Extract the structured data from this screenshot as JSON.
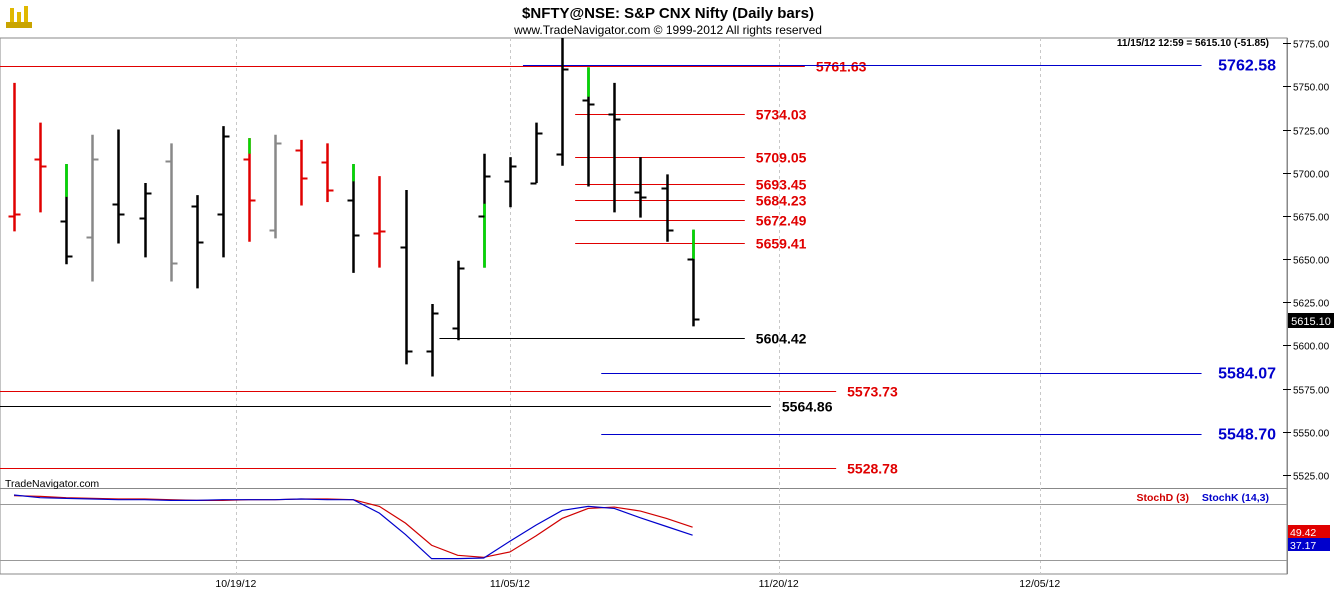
{
  "title": "$NFTY@NSE:  S&P CNX Nifty  (Daily bars)",
  "copyright": "www.TradeNavigator.com © 1999-2012 All rights reserved",
  "logo_text": "TradeNavigator.com",
  "quote_readout": "11/15/12 12:59 = 5615.10 (-51.85)",
  "last_price_label": "5615.10",
  "colors": {
    "up": "#000000",
    "down": "#e00000",
    "gap_up": "#00dd00",
    "inside": "#888888",
    "level_red": "#e00000",
    "level_blue": "#0000cc",
    "level_black": "#000000",
    "stoch_d": "#d00000",
    "stoch_k": "#0000cc",
    "grid": "#c8c8c8"
  },
  "chart_data": {
    "type": "ohlc",
    "price_axis": {
      "ylim": [
        5518,
        5778
      ],
      "ticks": [
        "5775.00",
        "5750.00",
        "5725.00",
        "5700.00",
        "5675.00",
        "5650.00",
        "5625.00",
        "5600.00",
        "5575.00",
        "5550.00",
        "5525.00"
      ],
      "tick_values": [
        5775,
        5750,
        5725,
        5700,
        5675,
        5650,
        5625,
        5600,
        5575,
        5550,
        5525
      ]
    },
    "x_axis": {
      "labels": [
        "10/19/12",
        "11/05/12",
        "11/20/12",
        "12/05/12"
      ],
      "label_bar_index": [
        8.5,
        19,
        29.3,
        39.3
      ],
      "grid_bar_index": [
        8.5,
        19,
        29.3,
        39.3
      ]
    },
    "bars": [
      {
        "o": 5675,
        "h": 5752,
        "l": 5666,
        "c": 5676,
        "col": "down"
      },
      {
        "o": 5708,
        "h": 5729,
        "l": 5677,
        "c": 5704,
        "col": "down"
      },
      {
        "o": 5672,
        "h": 5705,
        "l": 5647,
        "c": 5652,
        "col": "up",
        "gap": [
          5686,
          5705
        ]
      },
      {
        "o": 5663,
        "h": 5722,
        "l": 5637,
        "c": 5708,
        "col": "inside"
      },
      {
        "o": 5682,
        "h": 5725,
        "l": 5659,
        "c": 5676,
        "col": "up"
      },
      {
        "o": 5674,
        "h": 5694,
        "l": 5651,
        "c": 5688,
        "col": "up"
      },
      {
        "o": 5707,
        "h": 5717,
        "l": 5637,
        "c": 5648,
        "col": "inside"
      },
      {
        "o": 5681,
        "h": 5687,
        "l": 5633,
        "c": 5660,
        "col": "up"
      },
      {
        "o": 5676,
        "h": 5727,
        "l": 5651,
        "c": 5721,
        "col": "up"
      },
      {
        "o": 5708,
        "h": 5720,
        "l": 5660,
        "c": 5684,
        "col": "down",
        "gap": [
          5711,
          5720
        ]
      },
      {
        "o": 5667,
        "h": 5722,
        "l": 5662,
        "c": 5717,
        "col": "inside"
      },
      {
        "o": 5713,
        "h": 5719,
        "l": 5681,
        "c": 5697,
        "col": "down"
      },
      {
        "o": 5706,
        "h": 5717,
        "l": 5683,
        "c": 5690,
        "col": "down"
      },
      {
        "o": 5684,
        "h": 5705,
        "l": 5642,
        "c": 5664,
        "col": "up",
        "gap": [
          5695,
          5705
        ]
      },
      {
        "o": 5665,
        "h": 5698,
        "l": 5645,
        "c": 5666,
        "col": "down"
      },
      {
        "o": 5657,
        "h": 5690,
        "l": 5589,
        "c": 5597,
        "col": "up"
      },
      {
        "o": 5597,
        "h": 5624,
        "l": 5582,
        "c": 5619,
        "col": "up"
      },
      {
        "o": 5610,
        "h": 5649,
        "l": 5603,
        "c": 5645,
        "col": "up"
      },
      {
        "o": 5675,
        "h": 5711,
        "l": 5645,
        "c": 5698,
        "col": "up",
        "gap": [
          5645,
          5682
        ]
      },
      {
        "o": 5695,
        "h": 5709,
        "l": 5680,
        "c": 5704,
        "col": "up"
      },
      {
        "o": 5694,
        "h": 5729,
        "l": 5694,
        "c": 5723,
        "col": "up"
      },
      {
        "o": 5711,
        "h": 5778,
        "l": 5704,
        "c": 5760,
        "col": "up"
      },
      {
        "o": 5742,
        "h": 5761,
        "l": 5692,
        "c": 5740,
        "col": "up",
        "gap": [
          5744,
          5761
        ]
      },
      {
        "o": 5734,
        "h": 5752,
        "l": 5677,
        "c": 5731,
        "col": "up"
      },
      {
        "o": 5689,
        "h": 5709,
        "l": 5674,
        "c": 5686,
        "col": "up"
      },
      {
        "o": 5691,
        "h": 5699,
        "l": 5660,
        "c": 5667,
        "col": "up"
      },
      {
        "o": 5650,
        "h": 5667,
        "l": 5611,
        "c": 5615,
        "col": "up",
        "gap": [
          5650,
          5667
        ]
      }
    ],
    "levels": [
      {
        "value": 5761.63,
        "label": "5761.63",
        "color": "level_red",
        "bar_from": -1.2,
        "bar_to": 30.3
      },
      {
        "value": 5762.58,
        "label": "5762.58",
        "color": "level_blue",
        "bar_from": 19.5,
        "bar_to": 45.5
      },
      {
        "value": 5734.03,
        "label": "5734.03",
        "color": "level_red",
        "bar_from": 21.5,
        "bar_to": 28.0
      },
      {
        "value": 5709.05,
        "label": "5709.05",
        "color": "level_red",
        "bar_from": 21.5,
        "bar_to": 28.0
      },
      {
        "value": 5693.45,
        "label": "5693.45",
        "color": "level_red",
        "bar_from": 21.5,
        "bar_to": 28.0
      },
      {
        "value": 5684.23,
        "label": "5684.23",
        "color": "level_red",
        "bar_from": 21.5,
        "bar_to": 28.0
      },
      {
        "value": 5672.49,
        "label": "5672.49",
        "color": "level_red",
        "bar_from": 21.5,
        "bar_to": 28.0
      },
      {
        "value": 5659.41,
        "label": "5659.41",
        "color": "level_red",
        "bar_from": 21.5,
        "bar_to": 28.0
      },
      {
        "value": 5604.42,
        "label": "5604.42",
        "color": "level_black",
        "bar_from": 16.3,
        "bar_to": 28.0
      },
      {
        "value": 5584.07,
        "label": "5584.07",
        "color": "level_blue",
        "bar_from": 22.5,
        "bar_to": 45.5
      },
      {
        "value": 5573.73,
        "label": "5573.73",
        "color": "level_red",
        "bar_from": -2.0,
        "bar_to": 31.5
      },
      {
        "value": 5564.86,
        "label": "5564.86",
        "color": "level_black",
        "bar_from": -2.0,
        "bar_to": 29.0
      },
      {
        "value": 5548.7,
        "label": "5548.70",
        "color": "level_blue",
        "bar_from": 22.5,
        "bar_to": 45.5
      },
      {
        "value": 5528.78,
        "label": "5528.78",
        "color": "level_red",
        "bar_from": -2.0,
        "bar_to": 31.5
      }
    ],
    "stochastic": {
      "legend_d": "StochD (3)",
      "legend_k": "StochK (14,3)",
      "value_d": "49.42",
      "value_k": "37.17",
      "ylim": [
        0,
        100
      ],
      "k": [
        97,
        93,
        92,
        91,
        90,
        90,
        89,
        89,
        90,
        90,
        90,
        91,
        90,
        90,
        70,
        38,
        2,
        2,
        3,
        28,
        52,
        74,
        80,
        77,
        63,
        50,
        37
      ],
      "d": [
        96,
        95,
        93,
        92,
        91,
        91,
        90,
        89,
        89,
        90,
        90,
        91,
        91,
        90,
        80,
        55,
        22,
        7,
        4,
        12,
        36,
        62,
        77,
        79,
        73,
        62,
        49
      ]
    }
  }
}
